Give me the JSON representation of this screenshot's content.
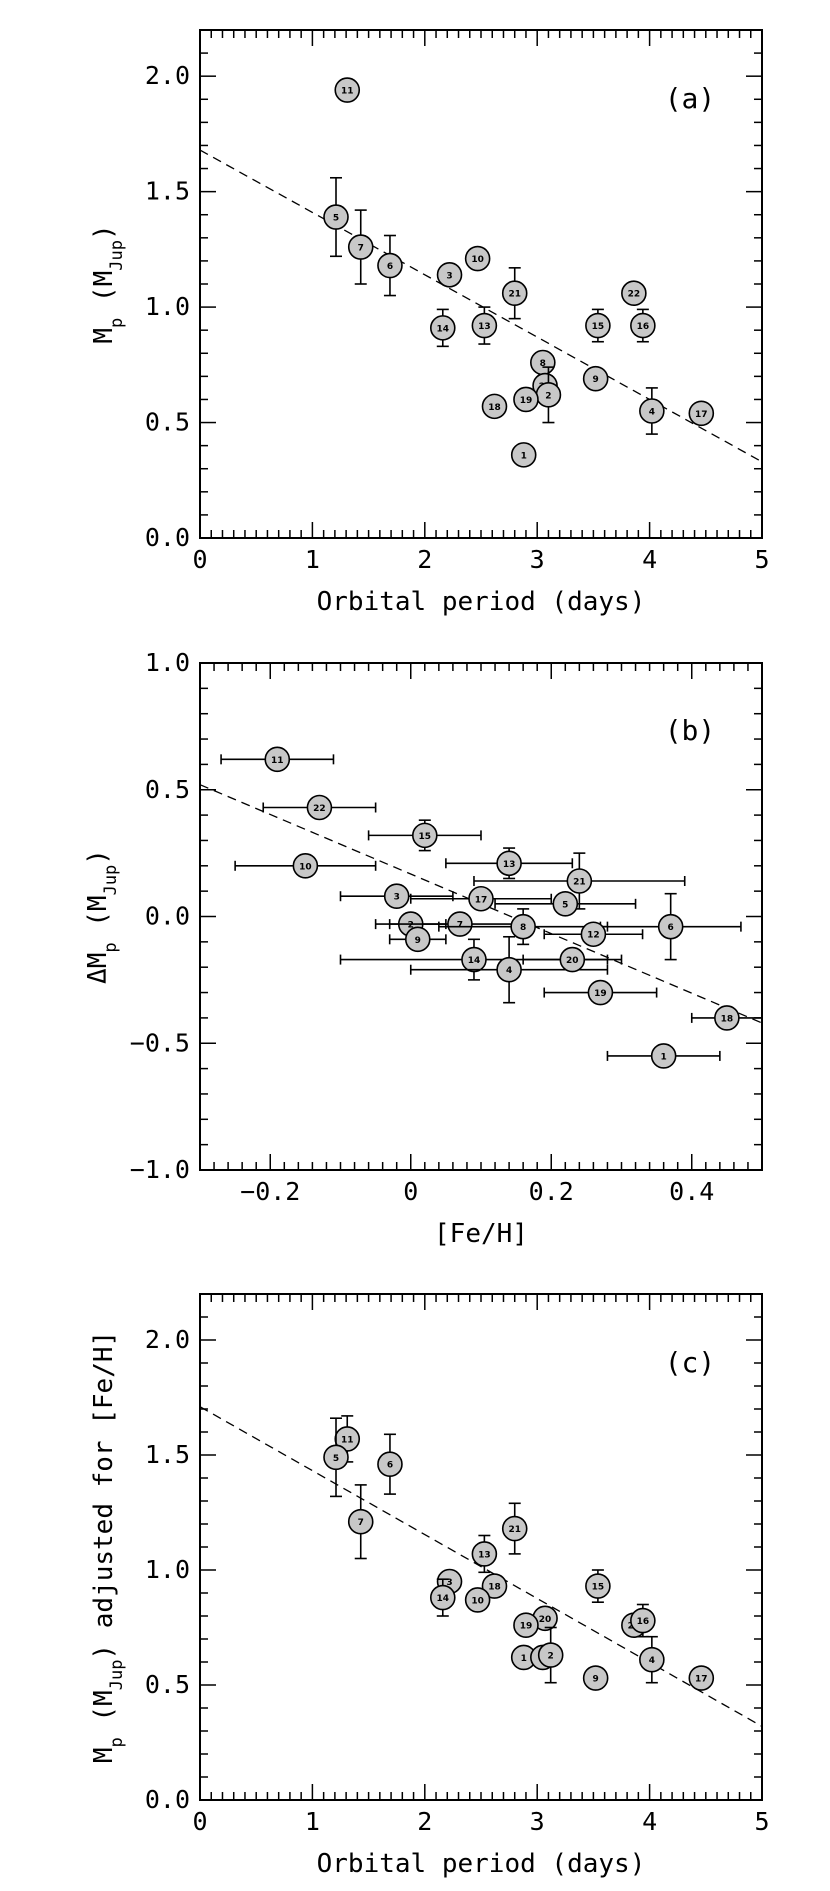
{
  "colors": {
    "marker_fill": "#c8c8c8",
    "stroke": "#000000",
    "background": "#ffffff"
  },
  "chart_data": [
    {
      "type": "scatter",
      "panel_label": "(a)",
      "xlabel": "Orbital period (days)",
      "ylabel": "M_p (M_Jup)",
      "xlim": [
        0,
        5
      ],
      "ylim": [
        0,
        2.2
      ],
      "xticks": [
        0,
        1,
        2,
        3,
        4,
        5
      ],
      "xtick_labels": [
        "0",
        "1",
        "2",
        "3",
        "4",
        "5"
      ],
      "yticks": [
        0,
        0.5,
        1,
        1.5,
        2
      ],
      "ytick_labels": [
        "0.0",
        "0.5",
        "1.0",
        "1.5",
        "2.0"
      ],
      "trend_line": {
        "x": [
          0,
          5
        ],
        "y": [
          1.68,
          0.33
        ],
        "style": "dashed"
      },
      "points": [
        {
          "label": "11",
          "x": 1.31,
          "y": 1.94,
          "yerr": 0
        },
        {
          "label": "5",
          "x": 1.21,
          "y": 1.39,
          "yerr": 0.17
        },
        {
          "label": "7",
          "x": 1.43,
          "y": 1.26,
          "yerr": 0.16
        },
        {
          "label": "6",
          "x": 1.69,
          "y": 1.18,
          "yerr": 0.13
        },
        {
          "label": "3",
          "x": 2.22,
          "y": 1.14,
          "yerr": 0
        },
        {
          "label": "10",
          "x": 2.47,
          "y": 1.21,
          "yerr": 0
        },
        {
          "label": "21",
          "x": 2.8,
          "y": 1.06,
          "yerr": 0.11
        },
        {
          "label": "14",
          "x": 2.16,
          "y": 0.91,
          "yerr": 0.08
        },
        {
          "label": "13",
          "x": 2.53,
          "y": 0.92,
          "yerr": 0.08
        },
        {
          "label": "15",
          "x": 3.54,
          "y": 0.92,
          "yerr": 0.07
        },
        {
          "label": "16",
          "x": 3.94,
          "y": 0.92,
          "yerr": 0.07
        },
        {
          "label": "22",
          "x": 3.86,
          "y": 1.06,
          "yerr": 0
        },
        {
          "label": "8",
          "x": 3.05,
          "y": 0.76,
          "yerr": 0
        },
        {
          "label": "20",
          "x": 3.07,
          "y": 0.66,
          "yerr": 0
        },
        {
          "label": "2",
          "x": 3.1,
          "y": 0.62,
          "yerr": 0.12
        },
        {
          "label": "19",
          "x": 2.9,
          "y": 0.6,
          "yerr": 0
        },
        {
          "label": "18",
          "x": 2.62,
          "y": 0.57,
          "yerr": 0
        },
        {
          "label": "9",
          "x": 3.52,
          "y": 0.69,
          "yerr": 0
        },
        {
          "label": "4",
          "x": 4.02,
          "y": 0.55,
          "yerr": 0.1
        },
        {
          "label": "17",
          "x": 4.46,
          "y": 0.54,
          "yerr": 0
        },
        {
          "label": "1",
          "x": 2.88,
          "y": 0.36,
          "yerr": 0
        }
      ]
    },
    {
      "type": "scatter",
      "panel_label": "(b)",
      "xlabel": "[Fe/H]",
      "ylabel": "ΔM_p (M_Jup)",
      "xlim": [
        -0.3,
        0.5
      ],
      "ylim": [
        -1,
        1
      ],
      "xticks": [
        -0.2,
        0,
        0.2,
        0.4
      ],
      "xtick_labels": [
        "−0.2",
        "0",
        "0.2",
        "0.4"
      ],
      "yticks": [
        -1,
        -0.5,
        0,
        0.5,
        1
      ],
      "ytick_labels": [
        "−1.0",
        "−0.5",
        "0.0",
        "0.5",
        "1.0"
      ],
      "trend_line": {
        "x": [
          -0.3,
          0.5
        ],
        "y": [
          0.52,
          -0.42
        ],
        "style": "dashed"
      },
      "points": [
        {
          "label": "11",
          "x": -0.19,
          "y": 0.62,
          "xerr": 0.08,
          "yerr": 0
        },
        {
          "label": "22",
          "x": -0.13,
          "y": 0.43,
          "xerr": 0.08,
          "yerr": 0
        },
        {
          "label": "10",
          "x": -0.15,
          "y": 0.2,
          "xerr": 0.1,
          "yerr": 0
        },
        {
          "label": "15",
          "x": 0.02,
          "y": 0.32,
          "xerr": 0.08,
          "yerr": 0.06
        },
        {
          "label": "13",
          "x": 0.14,
          "y": 0.21,
          "xerr": 0.09,
          "yerr": 0.06
        },
        {
          "label": "21",
          "x": 0.24,
          "y": 0.14,
          "xerr": 0.15,
          "yerr": 0.11
        },
        {
          "label": "3",
          "x": -0.02,
          "y": 0.08,
          "xerr": 0.08,
          "yerr": 0
        },
        {
          "label": "17",
          "x": 0.1,
          "y": 0.07,
          "xerr": 0.1,
          "yerr": 0
        },
        {
          "label": "5",
          "x": 0.22,
          "y": 0.05,
          "xerr": 0.1,
          "yerr": 0
        },
        {
          "label": "2",
          "x": 0,
          "y": -0.03,
          "xerr": 0.05,
          "yerr": 0
        },
        {
          "label": "7",
          "x": 0.07,
          "y": -0.03,
          "xerr": 0.1,
          "yerr": 0
        },
        {
          "label": "8",
          "x": 0.16,
          "y": -0.04,
          "xerr": 0.12,
          "yerr": 0.07
        },
        {
          "label": "6",
          "x": 0.37,
          "y": -0.04,
          "xerr": 0.1,
          "yerr": 0.13
        },
        {
          "label": "9",
          "x": 0.01,
          "y": -0.09,
          "xerr": 0.04,
          "yerr": 0
        },
        {
          "label": "12",
          "x": 0.26,
          "y": -0.07,
          "xerr": 0.07,
          "yerr": 0
        },
        {
          "label": "14",
          "x": 0.09,
          "y": -0.17,
          "xerr": 0.19,
          "yerr": 0.08
        },
        {
          "label": "4",
          "x": 0.14,
          "y": -0.21,
          "xerr": 0.14,
          "yerr": 0.13
        },
        {
          "label": "20",
          "x": 0.23,
          "y": -0.17,
          "xerr": 0.07,
          "yerr": 0
        },
        {
          "label": "19",
          "x": 0.27,
          "y": -0.3,
          "xerr": 0.08,
          "yerr": 0
        },
        {
          "label": "18",
          "x": 0.45,
          "y": -0.4,
          "xerr": 0.05,
          "yerr": 0
        },
        {
          "label": "1",
          "x": 0.36,
          "y": -0.55,
          "xerr": 0.08,
          "yerr": 0
        }
      ]
    },
    {
      "type": "scatter",
      "panel_label": "(c)",
      "xlabel": "Orbital period (days)",
      "ylabel": "M_p (M_Jup) adjusted for [Fe/H]",
      "xlim": [
        0,
        5
      ],
      "ylim": [
        0,
        2.2
      ],
      "xticks": [
        0,
        1,
        2,
        3,
        4,
        5
      ],
      "xtick_labels": [
        "0",
        "1",
        "2",
        "3",
        "4",
        "5"
      ],
      "yticks": [
        0,
        0.5,
        1,
        1.5,
        2
      ],
      "ytick_labels": [
        "0.0",
        "0.5",
        "1.0",
        "1.5",
        "2.0"
      ],
      "trend_line": {
        "x": [
          0,
          5
        ],
        "y": [
          1.71,
          0.32
        ],
        "style": "dashed"
      },
      "points": [
        {
          "label": "11",
          "x": 1.31,
          "y": 1.57,
          "yerr": 0.1
        },
        {
          "label": "5",
          "x": 1.21,
          "y": 1.49,
          "yerr": 0.17
        },
        {
          "label": "6",
          "x": 1.69,
          "y": 1.46,
          "yerr": 0.13
        },
        {
          "label": "7",
          "x": 1.43,
          "y": 1.21,
          "yerr": 0.16
        },
        {
          "label": "21",
          "x": 2.8,
          "y": 1.18,
          "yerr": 0.11
        },
        {
          "label": "13",
          "x": 2.53,
          "y": 1.07,
          "yerr": 0.08
        },
        {
          "label": "3",
          "x": 2.22,
          "y": 0.95,
          "yerr": 0
        },
        {
          "label": "18",
          "x": 2.62,
          "y": 0.93,
          "yerr": 0
        },
        {
          "label": "14",
          "x": 2.16,
          "y": 0.88,
          "yerr": 0.08
        },
        {
          "label": "10",
          "x": 2.47,
          "y": 0.87,
          "yerr": 0
        },
        {
          "label": "15",
          "x": 3.54,
          "y": 0.93,
          "yerr": 0.07
        },
        {
          "label": "20",
          "x": 3.07,
          "y": 0.79,
          "yerr": 0
        },
        {
          "label": "19",
          "x": 2.9,
          "y": 0.76,
          "yerr": 0
        },
        {
          "label": "22",
          "x": 3.86,
          "y": 0.76,
          "yerr": 0
        },
        {
          "label": "16",
          "x": 3.94,
          "y": 0.78,
          "yerr": 0.07
        },
        {
          "label": "1",
          "x": 2.88,
          "y": 0.62,
          "yerr": 0
        },
        {
          "label": "8",
          "x": 3.05,
          "y": 0.62,
          "yerr": 0
        },
        {
          "label": "2",
          "x": 3.12,
          "y": 0.63,
          "yerr": 0.12
        },
        {
          "label": "4",
          "x": 4.02,
          "y": 0.61,
          "yerr": 0.1
        },
        {
          "label": "9",
          "x": 3.52,
          "y": 0.53,
          "yerr": 0
        },
        {
          "label": "17",
          "x": 4.46,
          "y": 0.53,
          "yerr": 0
        }
      ]
    }
  ]
}
